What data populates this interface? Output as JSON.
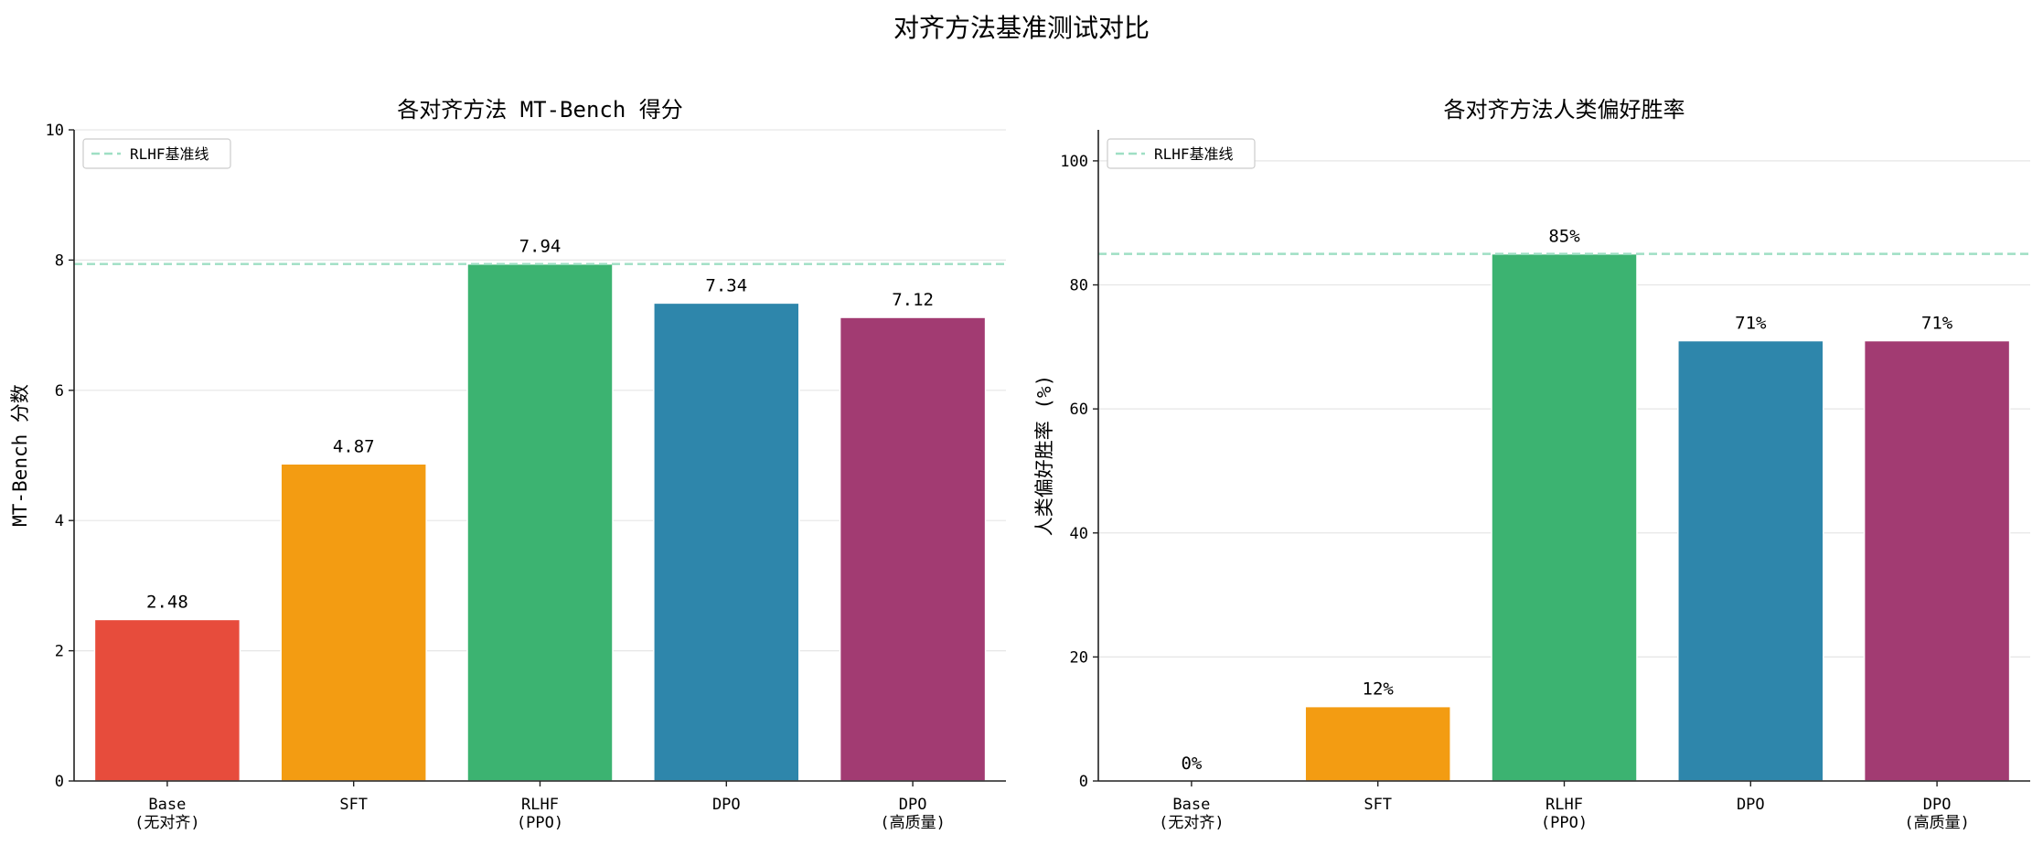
{
  "suptitle": "对齐方法基准测试对比",
  "chart_data": [
    {
      "type": "bar",
      "title": "各对齐方法 MT-Bench 得分",
      "xlabel": "",
      "ylabel": "MT-Bench 分数",
      "ylim": [
        0,
        10
      ],
      "yticks": [
        0,
        2,
        4,
        6,
        8,
        10
      ],
      "tick_labels": [
        "0",
        "2",
        "4",
        "6",
        "8",
        "10"
      ],
      "categories": [
        [
          "Base",
          "(无对齐)"
        ],
        [
          "SFT"
        ],
        [
          "RLHF",
          "(PPO)"
        ],
        [
          "DPO"
        ],
        [
          "DPO",
          "(高质量)"
        ]
      ],
      "values": [
        2.48,
        4.87,
        7.94,
        7.34,
        7.12
      ],
      "value_labels": [
        "2.48",
        "4.87",
        "7.94",
        "7.34",
        "7.12"
      ],
      "colors": [
        "#e74c3c",
        "#f39c12",
        "#3cb371",
        "#2e86ab",
        "#a23b72"
      ],
      "baseline": {
        "value": 7.94,
        "label": "RLHF基准线",
        "color": "#9fdfc4"
      },
      "legend_position": "top-left",
      "grid": "horizontal"
    },
    {
      "type": "bar",
      "title": "各对齐方法人类偏好胜率",
      "xlabel": "",
      "ylabel": "人类偏好胜率 (%)",
      "ylim": [
        0,
        105
      ],
      "yticks": [
        0,
        20,
        40,
        60,
        80,
        100
      ],
      "tick_labels": [
        "0",
        "20",
        "40",
        "60",
        "80",
        "100"
      ],
      "categories": [
        [
          "Base",
          "(无对齐)"
        ],
        [
          "SFT"
        ],
        [
          "RLHF",
          "(PPO)"
        ],
        [
          "DPO"
        ],
        [
          "DPO",
          "(高质量)"
        ]
      ],
      "values": [
        0,
        12,
        85,
        71,
        71
      ],
      "value_labels": [
        "0%",
        "12%",
        "85%",
        "71%",
        "71%"
      ],
      "colors": [
        "#e74c3c",
        "#f39c12",
        "#3cb371",
        "#2e86ab",
        "#a23b72"
      ],
      "baseline": {
        "value": 85,
        "label": "RLHF基准线",
        "color": "#9fdfc4"
      },
      "legend_position": "top-left",
      "grid": "horizontal"
    }
  ]
}
